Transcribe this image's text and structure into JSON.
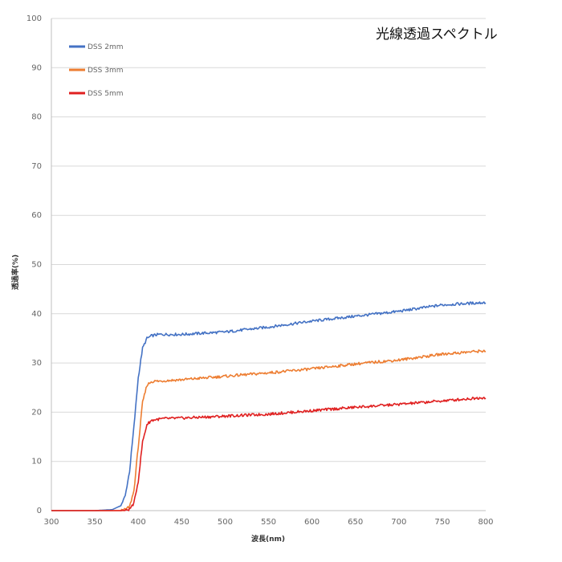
{
  "chart_data": {
    "type": "line",
    "title": "光線透過スペクトル",
    "xlabel": "波長(nm)",
    "ylabel": "透過率(%)",
    "xlim": [
      300,
      800
    ],
    "ylim": [
      0,
      100
    ],
    "xticks": [
      300,
      350,
      400,
      450,
      500,
      550,
      600,
      650,
      700,
      750,
      800
    ],
    "yticks": [
      0,
      10,
      20,
      30,
      40,
      50,
      60,
      70,
      80,
      90,
      100
    ],
    "grid": true,
    "legend_position": "top-left",
    "x": [
      300,
      350,
      370,
      380,
      385,
      390,
      395,
      400,
      405,
      410,
      415,
      420,
      425,
      430,
      450,
      500,
      550,
      600,
      650,
      700,
      750,
      800
    ],
    "series": [
      {
        "name": "DSS 2mm",
        "color": "#4472C4",
        "values": [
          0,
          0,
          0.2,
          1.0,
          3.0,
          8.0,
          17.0,
          27.0,
          33.0,
          35.0,
          35.5,
          35.7,
          35.8,
          35.8,
          35.8,
          36.3,
          37.3,
          38.5,
          39.5,
          40.5,
          41.8,
          42.3
        ]
      },
      {
        "name": "DSS 3mm",
        "color": "#ED7D31",
        "values": [
          0,
          0,
          0,
          0,
          0.2,
          0.8,
          4.0,
          13.0,
          22.0,
          25.5,
          26.2,
          26.3,
          26.3,
          26.4,
          26.6,
          27.3,
          28.0,
          28.8,
          29.8,
          30.6,
          31.8,
          32.5
        ]
      },
      {
        "name": "DSS 5mm",
        "color": "#E02020",
        "values": [
          0,
          0,
          0,
          0,
          0,
          0.3,
          1.5,
          6.0,
          14.0,
          17.5,
          18.3,
          18.5,
          18.6,
          18.7,
          18.8,
          19.2,
          19.6,
          20.3,
          21.0,
          21.6,
          22.3,
          23.0
        ]
      }
    ]
  }
}
